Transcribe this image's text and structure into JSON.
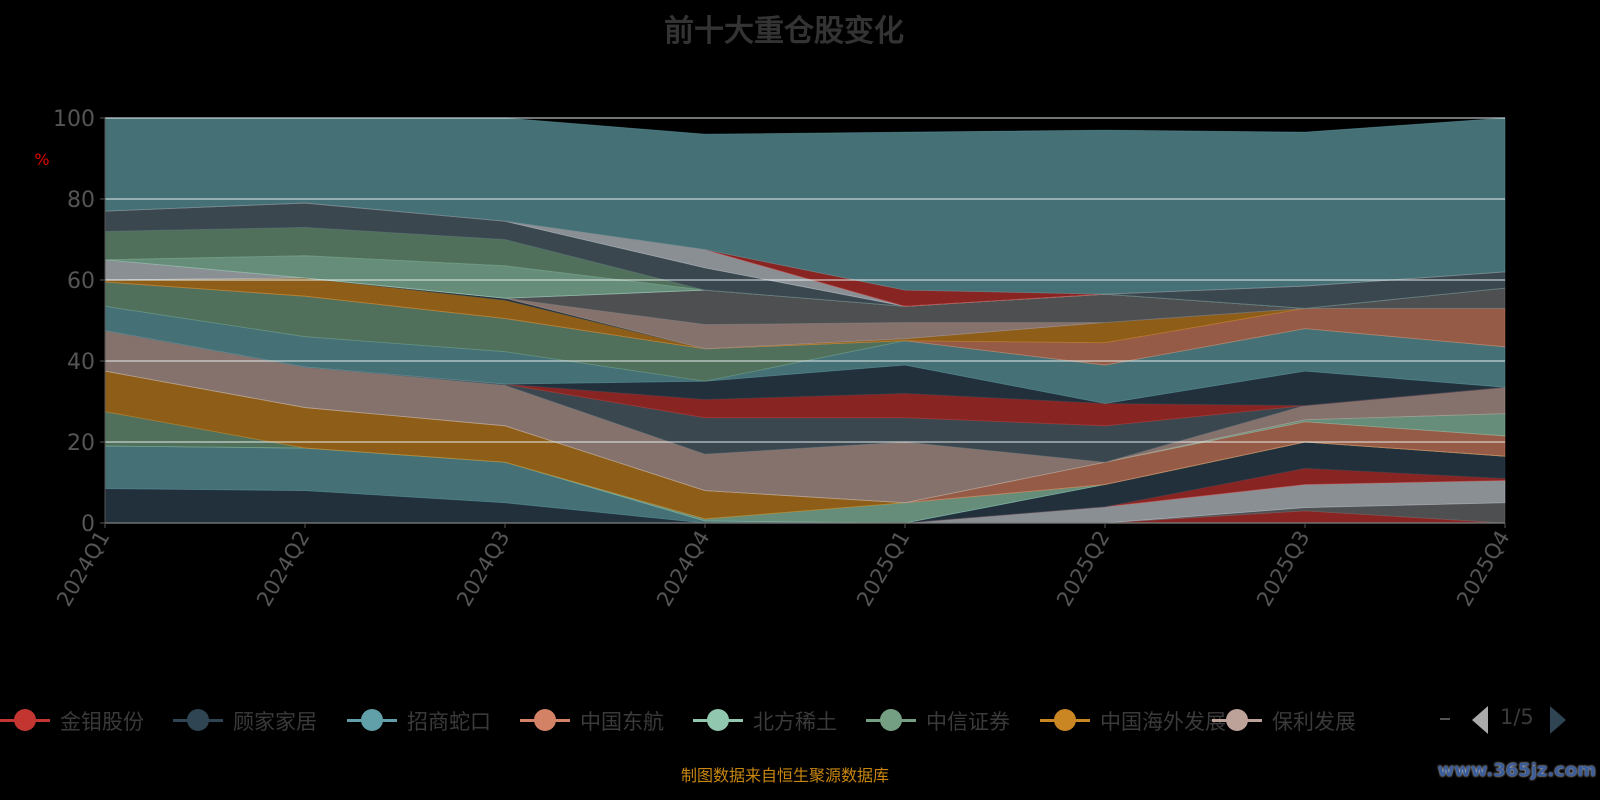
{
  "chart_data": {
    "type": "area",
    "stacked": true,
    "title": "前十大重仓股变化",
    "ylabel": "%",
    "ylim": [
      0,
      100
    ],
    "yticks": [
      "0",
      "20",
      "40",
      "60",
      "80",
      "100"
    ],
    "categories": [
      "2024Q1",
      "2024Q2",
      "2024Q3",
      "2024Q4",
      "2025Q1",
      "2025Q2",
      "2025Q3",
      "2025Q4"
    ],
    "grid": true,
    "legend_position": "bottom",
    "legend": [
      {
        "name": "金钼股份",
        "color": "#c23531"
      },
      {
        "name": "顾家家居",
        "color": "#2f4554"
      },
      {
        "name": "招商蛇口",
        "color": "#61a0a8"
      },
      {
        "name": "中国东航",
        "color": "#d48265"
      },
      {
        "name": "北方稀土",
        "color": "#91c7ae"
      },
      {
        "name": "中信证券",
        "color": "#749f83"
      },
      {
        "name": "中国海外发展",
        "color": "#ca8622"
      },
      {
        "name": "保利发展",
        "color": "#bda29a"
      }
    ],
    "legend_page": "1/5",
    "series": [
      {
        "color": "#c23531",
        "values": [
          0,
          0,
          0,
          0,
          0,
          0,
          3,
          0
        ]
      },
      {
        "color": "#6e7074",
        "values": [
          0,
          0,
          0,
          0,
          0,
          0,
          0.8,
          5
        ]
      },
      {
        "color": "#c4ccd3",
        "values": [
          0,
          0,
          0,
          0,
          0,
          4,
          5.7,
          5.5
        ]
      },
      {
        "color": "#c23531",
        "values": [
          0,
          0,
          0,
          0,
          0,
          0,
          4,
          0.5
        ]
      },
      {
        "color": "#2f4554",
        "values": [
          8.5,
          8,
          5,
          0,
          0,
          5.5,
          6.5,
          5.5
        ]
      },
      {
        "color": "#61a0a8",
        "values": [
          10.5,
          10.5,
          10,
          0.5,
          0,
          0,
          0,
          0
        ]
      },
      {
        "color": "#91c7ae",
        "values": [
          0,
          0,
          0,
          0.5,
          5,
          0,
          0,
          0
        ]
      },
      {
        "color": "#749f83",
        "values": [
          8.5,
          0,
          0,
          0,
          0,
          0,
          0,
          0
        ]
      },
      {
        "color": "#ca8622",
        "values": [
          10,
          10,
          9,
          7,
          0,
          0,
          0,
          0
        ]
      },
      {
        "color": "#d48265",
        "values": [
          0,
          0,
          0,
          0,
          0,
          5.5,
          5,
          5
        ]
      },
      {
        "color": "#91c7ae",
        "values": [
          0,
          0,
          0,
          0,
          0,
          0,
          0.5,
          5.5
        ]
      },
      {
        "color": "#bda29a",
        "values": [
          10,
          10,
          10,
          9,
          15,
          0,
          3.5,
          6.5
        ]
      },
      {
        "color": "#546570",
        "values": [
          0,
          0,
          0.3,
          9,
          6,
          9,
          0,
          0
        ]
      },
      {
        "color": "#c23531",
        "values": [
          0,
          0,
          0,
          4.5,
          6,
          5.5,
          0,
          0
        ]
      },
      {
        "color": "#2f4554",
        "values": [
          0,
          0,
          0,
          4.5,
          7,
          0,
          8.5,
          0
        ]
      },
      {
        "color": "#61a0a8",
        "values": [
          6,
          7.5,
          8,
          0,
          6,
          9.5,
          10.5,
          10
        ]
      },
      {
        "color": "#749f83",
        "values": [
          6,
          10,
          8.2,
          8,
          0,
          0,
          0,
          0
        ]
      },
      {
        "color": "#d48265",
        "values": [
          0,
          0,
          0,
          0,
          0,
          5.5,
          5,
          9.5
        ]
      },
      {
        "color": "#ca8622",
        "values": [
          0.5,
          4.5,
          4.5,
          0,
          0.5,
          5,
          0,
          0
        ]
      },
      {
        "color": "#2f4554",
        "values": [
          0,
          0,
          0.5,
          0,
          0,
          0,
          0,
          0
        ]
      },
      {
        "color": "#bda29a",
        "values": [
          0,
          0,
          0,
          6,
          4,
          0,
          0,
          0
        ]
      },
      {
        "color": "#6e7074",
        "values": [
          0,
          0,
          0,
          8.5,
          4,
          7,
          0,
          5
        ]
      },
      {
        "color": "#c4ccd3",
        "values": [
          5,
          0,
          0,
          0,
          0,
          0,
          0,
          0
        ]
      },
      {
        "color": "#91c7ae",
        "values": [
          0,
          5.5,
          8,
          0,
          0,
          0,
          0,
          0
        ]
      },
      {
        "color": "#749f83",
        "values": [
          7,
          7,
          6.5,
          0,
          0,
          0,
          0,
          0
        ]
      },
      {
        "color": "#546570",
        "values": [
          5,
          6,
          4.5,
          5.5,
          0,
          0,
          5.5,
          4
        ]
      },
      {
        "color": "#c4ccd3",
        "values": [
          0,
          0,
          0,
          4.5,
          0,
          0,
          0,
          0
        ]
      },
      {
        "color": "#c23531",
        "values": [
          0,
          0,
          0,
          0,
          4,
          0,
          0,
          0
        ]
      },
      {
        "color": "#61a0a8",
        "values": [
          23,
          21,
          25.5,
          28.5,
          39,
          40.5,
          38,
          38
        ]
      }
    ]
  },
  "footer": "制图数据来自恒生聚源数据库",
  "watermark": "www.365jz.com"
}
